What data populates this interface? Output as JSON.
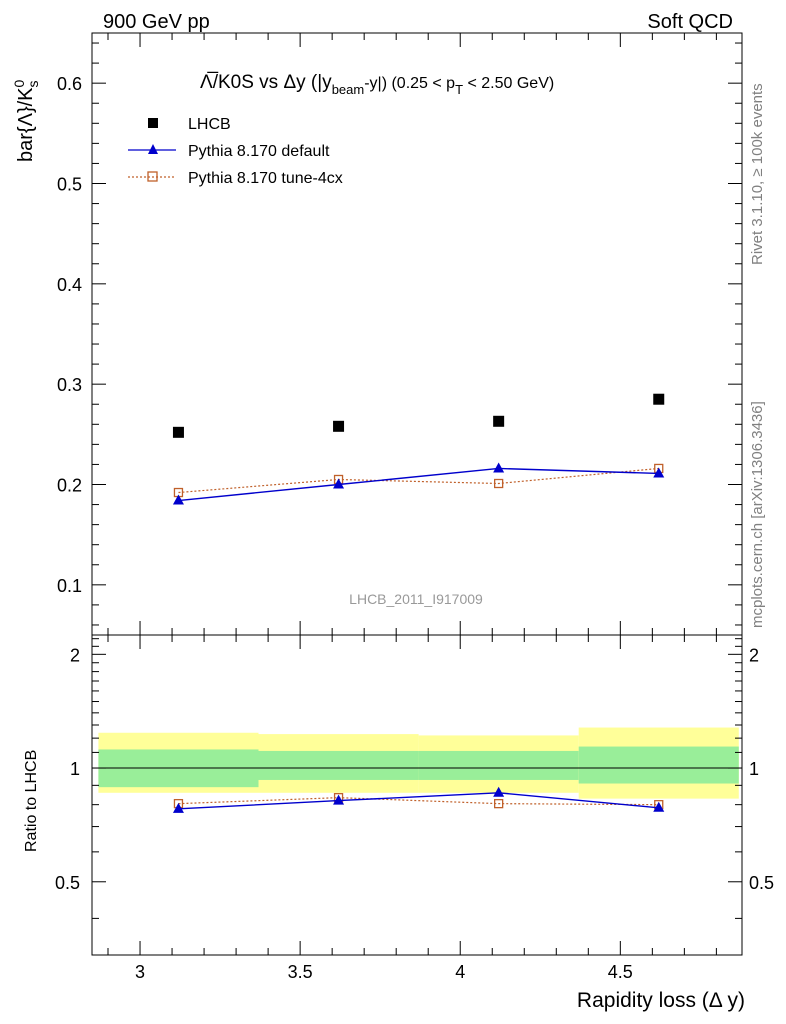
{
  "header": {
    "left": "900 GeV pp",
    "right": "Soft QCD"
  },
  "side_labels": {
    "rivet": "Rivet 3.1.10, ≥ 100k events",
    "mcplots": "mcplots.cern.ch [arXiv:1306.3436]"
  },
  "chart_data": {
    "type": "scatter",
    "title_parts": {
      "main": "Λ̅/K0S vs Δy (|y",
      "sub1": "beam",
      "mid": "-y|) (0.25 < p",
      "sub2": "T",
      "end": " < 2.50 GeV)"
    },
    "ylabel": "bar{Λ}/K",
    "ylabel_sup": "0",
    "ylabel_sub": "s",
    "xlabel": "Rapidity loss (Δ y)",
    "ratio_ylabel": "Ratio to LHCB",
    "watermark": "LHCB_2011_I917009",
    "xlim": [
      2.85,
      4.88
    ],
    "ylim": [
      0.05,
      0.65
    ],
    "ratio_ylim": [
      0.32,
      2.25
    ],
    "x_ticks": [
      "3",
      "3.5",
      "4",
      "4.5"
    ],
    "y_ticks": [
      "0.1",
      "0.2",
      "0.3",
      "0.4",
      "0.5",
      "0.6"
    ],
    "ratio_ticks": [
      "0.5",
      "1",
      "2"
    ],
    "x": [
      3.12,
      3.62,
      4.12,
      4.62
    ],
    "bin_edges": [
      2.87,
      3.37,
      3.87,
      4.37,
      4.87
    ],
    "series": [
      {
        "name": "LHCB",
        "values": [
          0.252,
          0.258,
          0.263,
          0.285
        ],
        "color": "#000000",
        "marker": "square"
      },
      {
        "name": "Pythia 8.170 default",
        "values": [
          0.184,
          0.2,
          0.216,
          0.211
        ],
        "color": "#0000cc",
        "marker": "triangle"
      },
      {
        "name": "Pythia 8.170 tune-4cx",
        "values": [
          0.192,
          0.205,
          0.201,
          0.216
        ],
        "color": "#c0602a",
        "marker": "open-square"
      }
    ],
    "ratio_series": [
      {
        "name": "Pythia 8.170 default",
        "values": [
          0.78,
          0.82,
          0.86,
          0.785
        ]
      },
      {
        "name": "Pythia 8.170 tune-4cx",
        "values": [
          0.805,
          0.835,
          0.805,
          0.8
        ]
      }
    ],
    "ratio_bands": {
      "inner": [
        [
          0.89,
          1.12
        ],
        [
          0.93,
          1.11
        ],
        [
          0.93,
          1.11
        ],
        [
          0.91,
          1.14
        ]
      ],
      "outer": [
        [
          0.86,
          1.24
        ],
        [
          0.86,
          1.23
        ],
        [
          0.86,
          1.22
        ],
        [
          0.83,
          1.28
        ]
      ]
    }
  }
}
